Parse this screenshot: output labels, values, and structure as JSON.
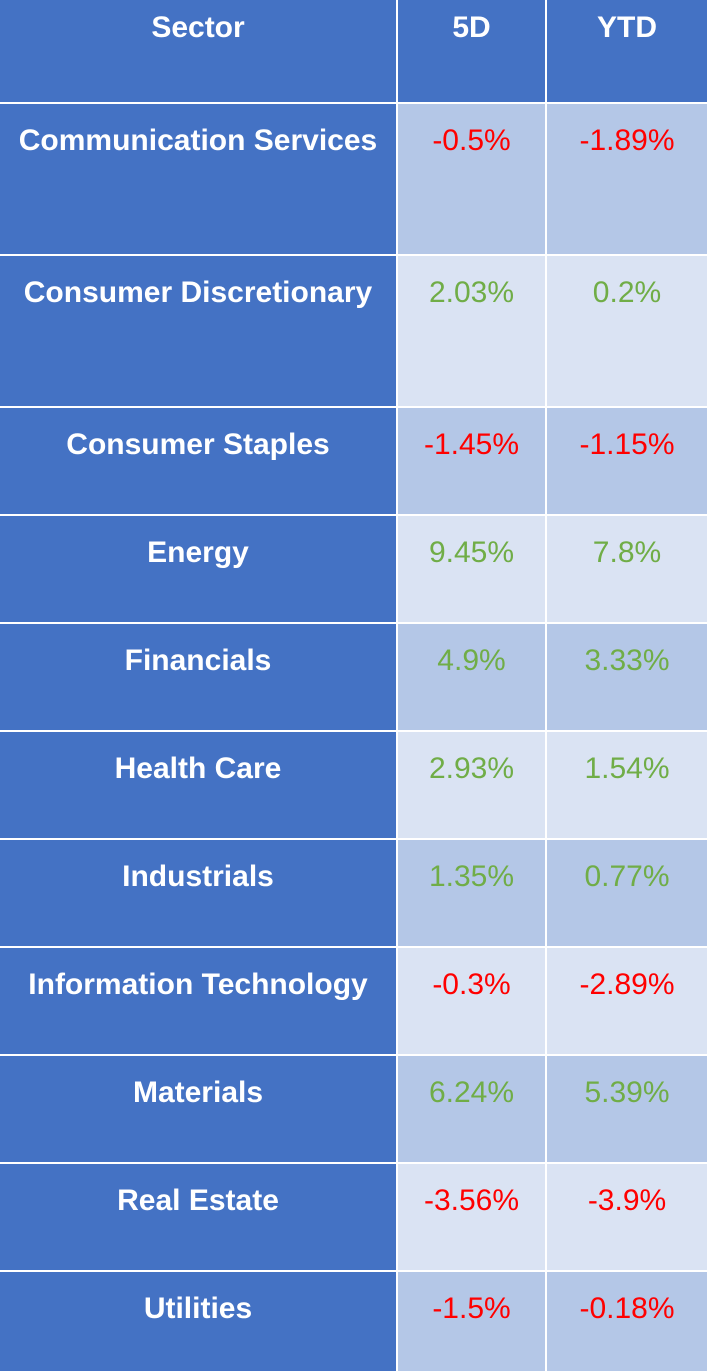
{
  "table": {
    "headers": [
      "Sector",
      "5D",
      "YTD"
    ],
    "colors": {
      "positive": "#70ad47",
      "negative": "#ff0000",
      "header_bg": "#4472c4"
    },
    "rows": [
      {
        "sector": "Communication Services",
        "d5": "-0.5%",
        "ytd": "-1.89%"
      },
      {
        "sector": "Consumer Discretionary",
        "d5": "2.03%",
        "ytd": "0.2%"
      },
      {
        "sector": "Consumer Staples",
        "d5": "-1.45%",
        "ytd": "-1.15%"
      },
      {
        "sector": "Energy",
        "d5": "9.45%",
        "ytd": "7.8%"
      },
      {
        "sector": "Financials",
        "d5": "4.9%",
        "ytd": "3.33%"
      },
      {
        "sector": "Health Care",
        "d5": "2.93%",
        "ytd": "1.54%"
      },
      {
        "sector": "Industrials",
        "d5": "1.35%",
        "ytd": "0.77%"
      },
      {
        "sector": "Information Technology",
        "d5": "-0.3%",
        "ytd": "-2.89%"
      },
      {
        "sector": "Materials",
        "d5": "6.24%",
        "ytd": "5.39%"
      },
      {
        "sector": "Real Estate",
        "d5": "-3.56%",
        "ytd": "-3.9%"
      },
      {
        "sector": "Utilities",
        "d5": "-1.5%",
        "ytd": "-0.18%"
      }
    ]
  }
}
